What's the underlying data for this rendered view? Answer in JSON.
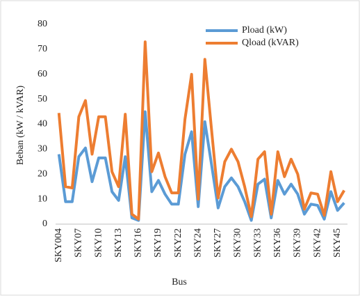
{
  "chart_data": {
    "type": "line",
    "categories": [
      "SKY004",
      null,
      null,
      "SKY07",
      null,
      null,
      "SKY10",
      null,
      null,
      "SKY13",
      null,
      null,
      "SKY16",
      null,
      null,
      "SKY19",
      null,
      null,
      "SKY22",
      null,
      null,
      "SKY24",
      null,
      null,
      "SKY27",
      null,
      null,
      "SKY30",
      null,
      null,
      "SKY33",
      null,
      null,
      "SKY36",
      null,
      null,
      "SKY39",
      null,
      null,
      "SKY42",
      null,
      null,
      "SKY45",
      null
    ],
    "series": [
      {
        "name": "Pload (kW)",
        "color": "#5b9bd5",
        "values": [
          28,
          9,
          9,
          27,
          30.5,
          17,
          26.5,
          26.5,
          13,
          9.5,
          27,
          2.5,
          1.5,
          45,
          13,
          17.5,
          12,
          8,
          8,
          28,
          37,
          7,
          41,
          24,
          6.5,
          15,
          18.5,
          15,
          9,
          1.5,
          16,
          18,
          2.5,
          17.5,
          12,
          16,
          12,
          4,
          8,
          7.5,
          2,
          13,
          5.5,
          8.5
        ]
      },
      {
        "name": "Qload (kVAR)",
        "color": "#ed7d31",
        "values": [
          44.5,
          15,
          14.5,
          43,
          49.5,
          28,
          43,
          43,
          21,
          15,
          44,
          4,
          2,
          73,
          21,
          28.5,
          19,
          12.5,
          12.5,
          42,
          60,
          10,
          66,
          38,
          10.5,
          25,
          30,
          25,
          15,
          3,
          26,
          29,
          4,
          29,
          19,
          26,
          20,
          6,
          12.5,
          12,
          3.5,
          21,
          9,
          13.5
        ]
      }
    ],
    "ylim": [
      0,
      80
    ],
    "yticks": [
      0,
      10,
      20,
      30,
      40,
      50,
      60,
      70,
      80
    ],
    "xlabel": "Bus",
    "ylabel": "Beban (kW / kVAR)",
    "legend": "top-right"
  }
}
